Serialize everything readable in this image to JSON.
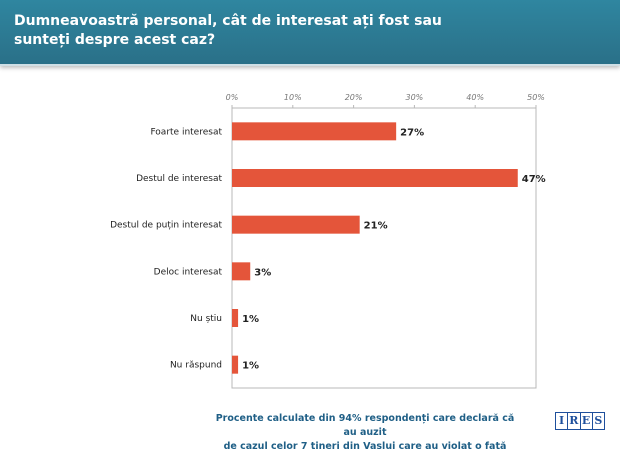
{
  "header": {
    "title": "Dumneavoastră personal, cât de interesat ați fost sau sunteți despre acest caz?"
  },
  "chart_data": {
    "type": "bar",
    "orientation": "horizontal",
    "title": "Dumneavoastră personal, cât de interesat ați fost sau sunteți despre acest caz?",
    "categories": [
      "Foarte interesat",
      "Destul de interesat",
      "Destul de puțin interesat",
      "Deloc interesat",
      "Nu știu",
      "Nu răspund"
    ],
    "values": [
      27,
      47,
      21,
      3,
      1,
      1
    ],
    "value_labels": [
      "27%",
      "47%",
      "21%",
      "3%",
      "1%",
      "1%"
    ],
    "xlim": [
      0,
      50
    ],
    "ticks": [
      "0%",
      "10%",
      "20%",
      "30%",
      "40%",
      "50%"
    ],
    "tick_values": [
      0,
      10,
      20,
      30,
      40,
      50
    ],
    "bar_color": "#e4553a",
    "grid": false
  },
  "footer": {
    "note_line1": "Procente calculate din 94% respondenți care declară că au auzit",
    "note_line2": "de cazul celor 7 tineri din Vaslui care au violat o fată",
    "logo": [
      "I",
      "R",
      "E",
      "S"
    ]
  }
}
